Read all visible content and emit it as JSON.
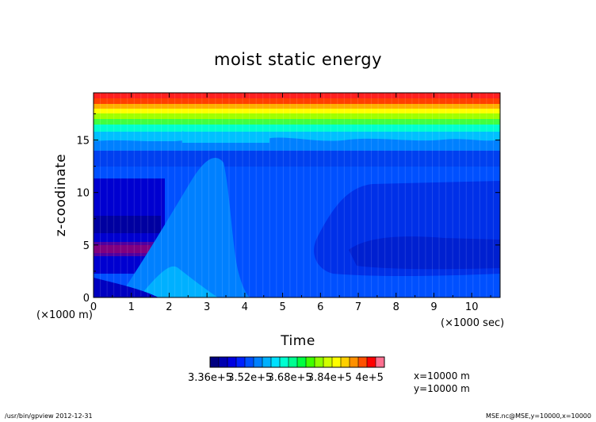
{
  "chart_data": {
    "type": "heatmap",
    "title": "moist static energy",
    "xlabel": "Time",
    "ylabel": "z-coodinate",
    "x_unit": "(×1000 sec)",
    "y_unit": "(×1000 m)",
    "xlim": [
      0,
      10.75
    ],
    "ylim": [
      0,
      19.5
    ],
    "x_ticks": [
      "0",
      "1",
      "2",
      "3",
      "4",
      "5",
      "6",
      "7",
      "8",
      "9",
      "10"
    ],
    "y_ticks": [
      "0",
      "5",
      "10",
      "15"
    ],
    "colorbar": {
      "min": 336000,
      "max": 406000,
      "step": 4000,
      "tick_labels": [
        "3.36e+5",
        "3.52e+5",
        "3.68e+5",
        "3.84e+5",
        "4e+5"
      ],
      "colors": [
        "#000080",
        "#0000b0",
        "#0000e0",
        "#0020ff",
        "#0050ff",
        "#0080ff",
        "#00b0ff",
        "#00e0ff",
        "#00ffd0",
        "#00ff90",
        "#00ff40",
        "#40ff00",
        "#90ff00",
        "#d0ff00",
        "#ffff00",
        "#ffd000",
        "#ff9000",
        "#ff5000",
        "#ff0000",
        "#ff7090"
      ]
    }
  },
  "info": {
    "x_pos": "x=10000  m",
    "y_pos": "y=10000  m"
  },
  "footer": {
    "left": "/usr/bin/gpview  2012-12-31",
    "right": "MSE.nc@MSE,y=10000,x=10000"
  }
}
